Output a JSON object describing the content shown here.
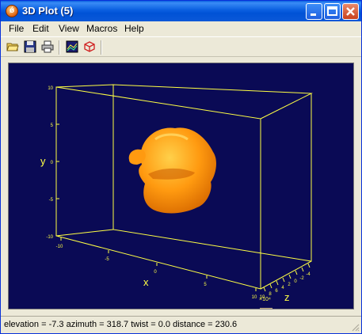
{
  "window": {
    "title": "3D Plot (5)",
    "app_icon": "idl-logo-icon",
    "controls": [
      "minimize-icon",
      "maximize-icon",
      "close-icon"
    ]
  },
  "menu": {
    "file": "File",
    "edit": "Edit",
    "view": "View",
    "macros": "Macros",
    "help": "Help"
  },
  "toolbar": {
    "icons": [
      "open-folder-icon",
      "save-icon",
      "print-icon",
      "surface-style-icon",
      "rotate-3d-icon"
    ]
  },
  "plot": {
    "background": "#0a0a55",
    "box_color": "#ffff44",
    "object_color": "#ff9a10",
    "x_axis": {
      "label": "x",
      "ticks": [
        "-10",
        "-5",
        "0",
        "5",
        "10"
      ]
    },
    "y_axis": {
      "label": "y",
      "ticks": [
        "10",
        "5",
        "0",
        "-5",
        "-10"
      ]
    },
    "z_axis": {
      "label": "z",
      "ticks": [
        "-4",
        "-2",
        "0",
        "2",
        "4",
        "6",
        "8",
        "10"
      ],
      "multiplier": "×10⁴"
    }
  },
  "status": {
    "text": "elevation = -7.3 azimuth = 318.7 twist = 0.0 distance = 230.6"
  }
}
